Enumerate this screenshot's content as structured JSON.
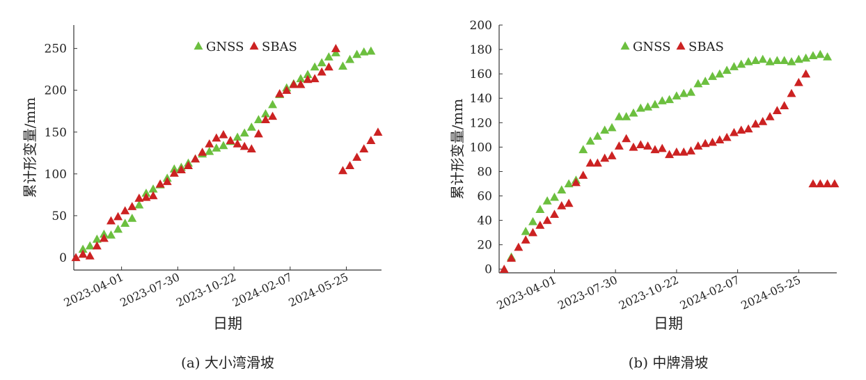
{
  "colors": {
    "gnss": "#6cbf3f",
    "sbas": "#cc2222",
    "axis": "#333333"
  },
  "chart_data": [
    {
      "type": "scatter",
      "caption": "(a) 大小湾滑坡",
      "xlabel": "日期",
      "ylabel": "累计形变量/mm",
      "xticks": [
        "2023-04-01",
        "2023-07-30",
        "2023-10-22",
        "2024-02-07",
        "2024-05-25"
      ],
      "yticks": [
        "0",
        "50",
        "100",
        "150",
        "200",
        "250"
      ],
      "ylim": [
        -15,
        278
      ],
      "legend": {
        "position": "top-center",
        "entries": [
          "GNSS",
          "SBAS"
        ]
      },
      "x_index_range": [
        -0.3,
        43.5
      ],
      "xtick_index": [
        6.5,
        14.5,
        22.5,
        30.5,
        38.5
      ],
      "series": [
        {
          "name": "GNSS",
          "marker": "triangle",
          "color": "#6cbf3f",
          "x": [
            1,
            2,
            3,
            4,
            5,
            6,
            7,
            8,
            9,
            10,
            11,
            12,
            13,
            14,
            15,
            16,
            17,
            18,
            19,
            20,
            21,
            22,
            23,
            24,
            25,
            26,
            27,
            28,
            29,
            30,
            31,
            32,
            33,
            34,
            35,
            36,
            37,
            38,
            39,
            40,
            41,
            42
          ],
          "values": [
            10,
            14,
            22,
            28,
            27,
            34,
            41,
            47,
            63,
            77,
            82,
            87,
            95,
            106,
            108,
            113,
            118,
            124,
            127,
            131,
            134,
            139,
            144,
            149,
            156,
            165,
            172,
            183,
            195,
            203,
            208,
            214,
            219,
            228,
            233,
            240,
            245,
            229,
            237,
            243,
            246,
            247
          ]
        },
        {
          "name": "SBAS",
          "marker": "triangle",
          "color": "#cc2222",
          "x": [
            0,
            1,
            2,
            3,
            4,
            5,
            6,
            7,
            8,
            9,
            10,
            11,
            12,
            13,
            14,
            15,
            16,
            17,
            18,
            19,
            20,
            21,
            22,
            23,
            24,
            25,
            26,
            27,
            28,
            29,
            30,
            31,
            32,
            33,
            34,
            35,
            36,
            37,
            38,
            39,
            40,
            41,
            42,
            43
          ],
          "values": [
            0,
            4,
            2,
            14,
            23,
            44,
            49,
            56,
            61,
            71,
            72,
            74,
            88,
            91,
            101,
            105,
            110,
            118,
            126,
            136,
            143,
            147,
            140,
            136,
            133,
            130,
            148,
            165,
            169,
            196,
            200,
            207,
            207,
            213,
            214,
            222,
            228,
            250,
            104,
            110,
            120,
            130,
            140,
            150
          ]
        }
      ]
    },
    {
      "type": "scatter",
      "caption": "(b) 中牌滑坡",
      "xlabel": "日期",
      "ylabel": "累计形变量/mm",
      "xticks": [
        "2023-04-01",
        "2023-07-30",
        "2023-10-22",
        "2024-02-07",
        "2024-05-25"
      ],
      "yticks": [
        "0",
        "20",
        "40",
        "60",
        "80",
        "100",
        "120",
        "140",
        "160",
        "180",
        "200"
      ],
      "ylim": [
        -3,
        200
      ],
      "legend": {
        "position": "top-center",
        "entries": [
          "GNSS",
          "SBAS"
        ]
      },
      "x_index_range": [
        -0.7,
        46.3
      ],
      "xtick_index": [
        7,
        15.5,
        24,
        32.5,
        41
      ],
      "series": [
        {
          "name": "GNSS",
          "marker": "triangle",
          "color": "#6cbf3f",
          "x": [
            1,
            3,
            4,
            5,
            6,
            7,
            8,
            9,
            10,
            11,
            12,
            13,
            14,
            15,
            16,
            17,
            18,
            19,
            20,
            21,
            22,
            23,
            24,
            25,
            26,
            27,
            28,
            29,
            30,
            31,
            32,
            33,
            34,
            35,
            36,
            37,
            38,
            39,
            40,
            41,
            42,
            43,
            44,
            45
          ],
          "values": [
            10,
            31,
            39,
            49,
            56,
            59,
            65,
            70,
            73,
            98,
            105,
            109,
            114,
            116,
            125,
            125,
            128,
            132,
            133,
            135,
            138,
            139,
            142,
            144,
            145,
            152,
            154,
            158,
            160,
            163,
            166,
            168,
            170,
            171,
            172,
            170,
            171,
            171,
            170,
            172,
            173,
            175,
            176,
            174
          ]
        },
        {
          "name": "SBAS",
          "marker": "triangle",
          "color": "#cc2222",
          "x": [
            0,
            1,
            2,
            3,
            4,
            5,
            6,
            7,
            8,
            9,
            10,
            11,
            12,
            13,
            14,
            15,
            16,
            17,
            18,
            19,
            20,
            21,
            22,
            23,
            24,
            25,
            26,
            27,
            28,
            29,
            30,
            31,
            32,
            33,
            34,
            35,
            36,
            37,
            38,
            39,
            40,
            41,
            42,
            43,
            44,
            45,
            46
          ],
          "values": [
            0,
            9,
            18,
            24,
            30,
            36,
            40,
            45,
            52,
            54,
            71,
            77,
            87,
            87,
            91,
            93,
            101,
            107,
            100,
            102,
            101,
            98,
            99,
            94,
            96,
            96,
            97,
            101,
            103,
            104,
            106,
            108,
            112,
            114,
            115,
            119,
            121,
            125,
            130,
            134,
            144,
            153,
            160,
            70,
            70,
            70,
            70
          ]
        }
      ]
    }
  ]
}
